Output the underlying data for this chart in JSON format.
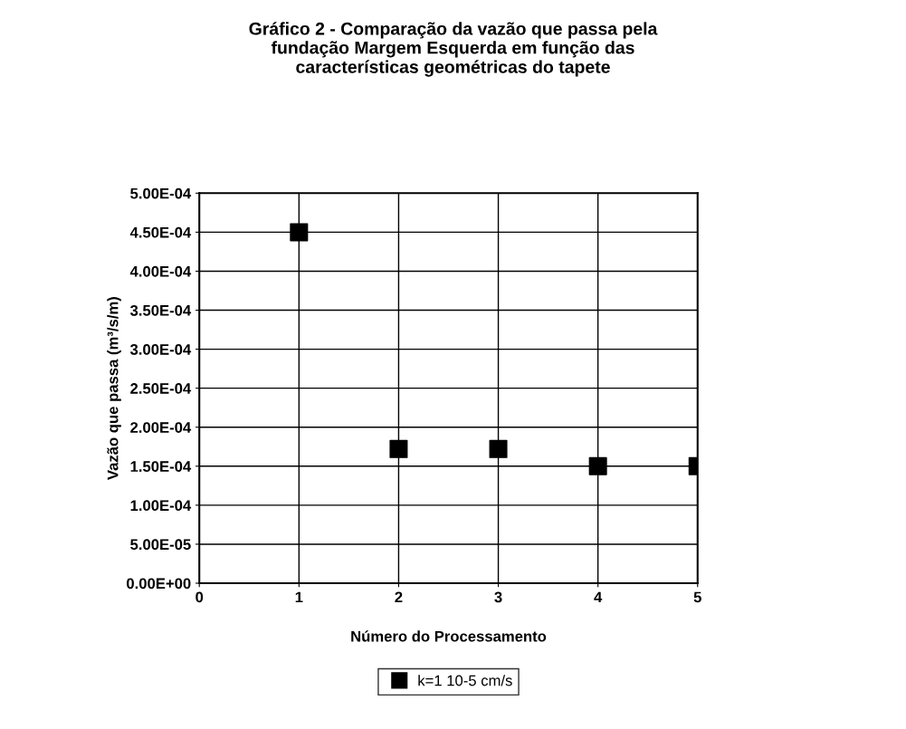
{
  "chart_data": {
    "type": "scatter",
    "title": "Gráfico 2 - Comparação da vazão que passa pela\nfundação Margem Esquerda em função das\ncaracterísticas geométricas do tapete",
    "xlabel": "Número do Processamento",
    "ylabel": "Vazão que passa (m³/s/m)",
    "x": [
      1,
      2,
      3,
      4,
      5
    ],
    "series": [
      {
        "name": "k=1 10-5 cm/s",
        "color": "#000000",
        "values": [
          0.00045,
          0.000172,
          0.000172,
          0.00015,
          0.00015
        ]
      }
    ],
    "xlim": [
      0,
      5
    ],
    "xticks": [
      0,
      1,
      2,
      3,
      4,
      5
    ],
    "ylim": [
      0,
      0.0005
    ],
    "yticks": [
      {
        "value": 0,
        "label": "0.00E+00"
      },
      {
        "value": 5e-05,
        "label": "5.00E-05"
      },
      {
        "value": 0.0001,
        "label": "1.00E-04"
      },
      {
        "value": 0.00015,
        "label": "1.50E-04"
      },
      {
        "value": 0.0002,
        "label": "2.00E-04"
      },
      {
        "value": 0.00025,
        "label": "2.50E-04"
      },
      {
        "value": 0.0003,
        "label": "3.00E-04"
      },
      {
        "value": 0.00035,
        "label": "3.50E-04"
      },
      {
        "value": 0.0004,
        "label": "4.00E-04"
      },
      {
        "value": 0.00045,
        "label": "4.50E-04"
      },
      {
        "value": 0.0005,
        "label": "5.00E-04"
      }
    ],
    "grid": true,
    "legend": "bottom",
    "marker": "square"
  }
}
